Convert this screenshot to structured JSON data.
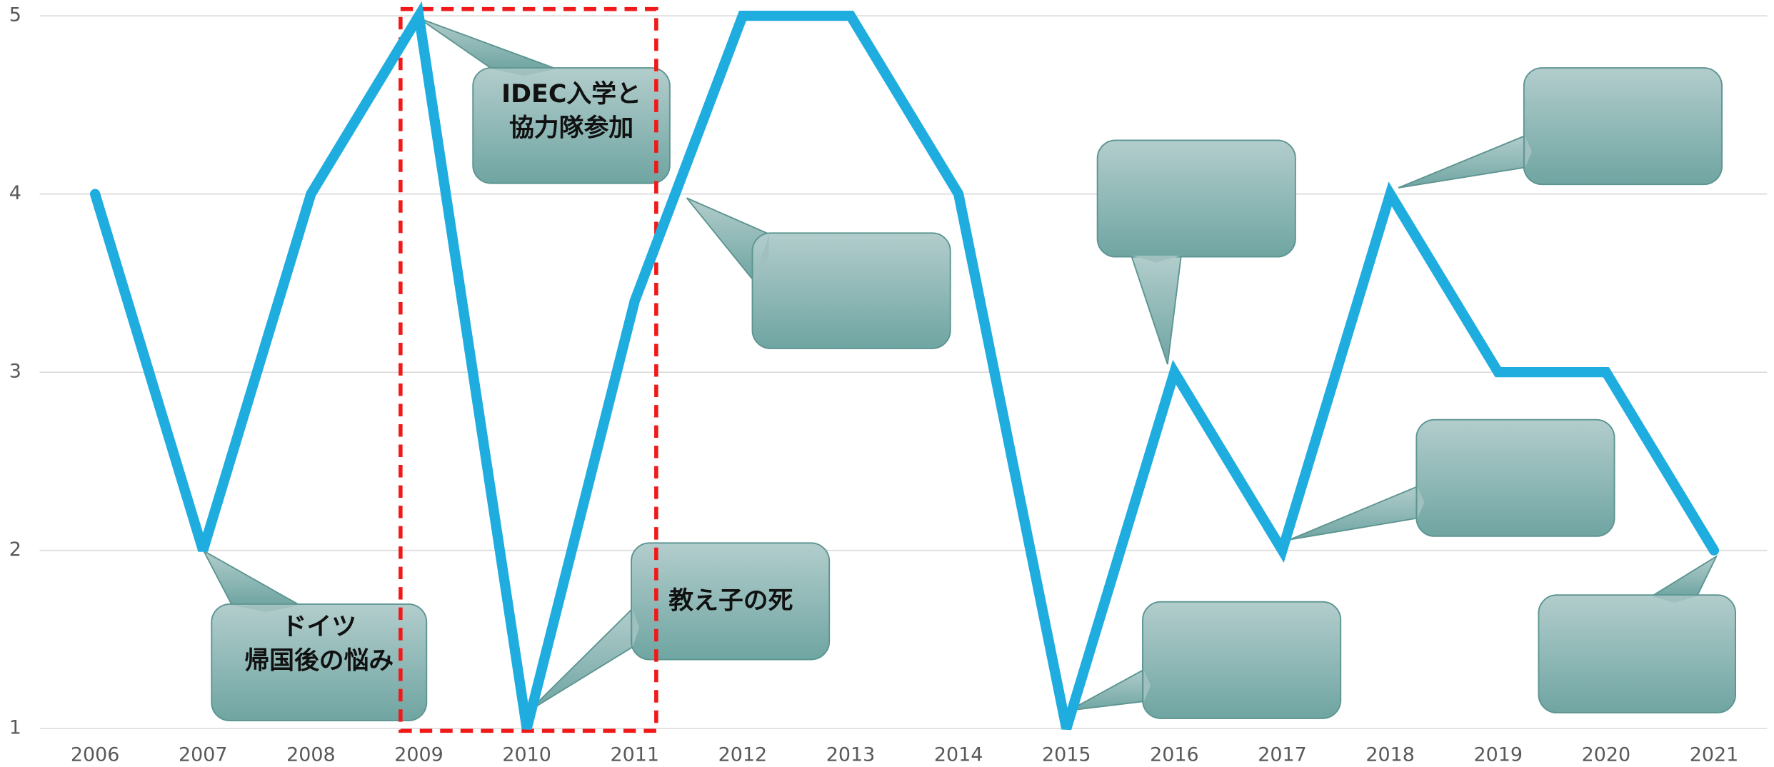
{
  "chart_data": {
    "type": "line",
    "categories": [
      "2006",
      "2007",
      "2008",
      "2009",
      "2010",
      "2011",
      "2012",
      "2013",
      "2014",
      "2015",
      "2016",
      "2017",
      "2018",
      "2019",
      "2020",
      "2021"
    ],
    "values": [
      4,
      2,
      4,
      5,
      1,
      3.4,
      5,
      5,
      4,
      1,
      3,
      2,
      4,
      3,
      3,
      2
    ],
    "color": "#1fade0",
    "ylim": [
      1,
      5
    ],
    "yticks": [
      1,
      2,
      3,
      4,
      5
    ],
    "grid": true,
    "annotations": [
      {
        "lines": [
          "IDEC入学と",
          "協力隊参加"
        ]
      },
      {
        "lines": [
          "ドイツ",
          "帰国後の悩み"
        ]
      },
      {
        "lines": [
          "教え子の死"
        ]
      }
    ]
  }
}
